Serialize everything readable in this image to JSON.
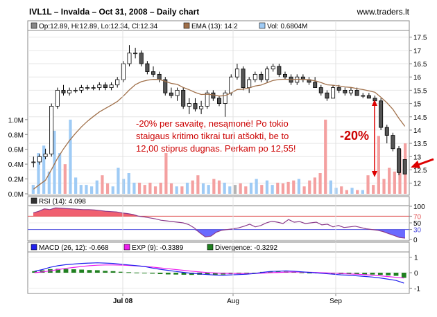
{
  "header": {
    "title": "IVL1L – Invalda – Oct 31, 2008 – Daily chart",
    "source": "www.traders.lt"
  },
  "legend_price": {
    "ohlc": "Op:12.89, Hi:12.89, Lo:12.34, Cl:12.34",
    "ema": "EMA (13): 14.2",
    "vol": "Vol: 0.6804M"
  },
  "annotation": {
    "lines": [
      "-20% per savaitę, nesąmonė! Po tokio",
      "staigaus kritimo tikrai turi atšokti, be to",
      "12,00 stiprus dugnas. Perkam po 12,55!"
    ],
    "drop_label": "-20%"
  },
  "legend_rsi": {
    "label": "RSI (14): 4.098"
  },
  "legend_macd": {
    "macd": "MACD (26, 12): -0.668",
    "exp": "EXP (9): -0.3389",
    "div": "Divergence: -0.3292"
  },
  "colors": {
    "up_volume": "#9fcbf5",
    "down_volume": "#f4a0a0",
    "neutral_volume": "#b4b4b4",
    "ema": "#a0704a",
    "rsi": "#8b3a8b",
    "rsi_fill_high": "#f06070",
    "rsi_fill_low": "#6a6aff",
    "macd": "#2020ee",
    "exp": "#ee20ee",
    "divergence": "#208020",
    "annotation": "#cc0000",
    "arrow": "#dd0000"
  },
  "chart_data": [
    {
      "type": "candlestick",
      "panel": "price",
      "x_ticks": [
        "Jul 08",
        "Aug",
        "Sep"
      ],
      "y_ticks": [
        "17.5",
        "17",
        "16.5",
        "16",
        "15.5",
        "15",
        "14.5",
        "14",
        "13.5",
        "13",
        "12.5",
        "12"
      ],
      "ylim": [
        11.6,
        17.7
      ],
      "candles": [
        [
          12.8,
          13.0,
          12.6,
          12.8
        ],
        [
          12.8,
          13.1,
          12.7,
          13.0
        ],
        [
          13.0,
          13.3,
          12.9,
          13.1
        ],
        [
          13.1,
          15.0,
          13.0,
          14.9
        ],
        [
          14.9,
          15.6,
          14.8,
          15.5
        ],
        [
          15.5,
          15.7,
          15.3,
          15.4
        ],
        [
          15.4,
          15.6,
          15.3,
          15.5
        ],
        [
          15.5,
          15.6,
          15.4,
          15.5
        ],
        [
          15.5,
          15.7,
          15.4,
          15.6
        ],
        [
          15.6,
          15.7,
          15.5,
          15.6
        ],
        [
          15.6,
          15.7,
          15.5,
          15.6
        ],
        [
          15.6,
          15.8,
          15.5,
          15.7
        ],
        [
          15.7,
          15.8,
          15.5,
          15.6
        ],
        [
          15.6,
          15.8,
          15.5,
          15.7
        ],
        [
          15.7,
          16.0,
          15.6,
          15.9
        ],
        [
          15.9,
          16.6,
          15.8,
          16.5
        ],
        [
          16.5,
          17.2,
          16.4,
          16.9
        ],
        [
          16.9,
          17.1,
          16.7,
          16.9
        ],
        [
          16.9,
          17.0,
          16.4,
          16.5
        ],
        [
          16.5,
          16.6,
          16.1,
          16.2
        ],
        [
          16.2,
          16.4,
          16.0,
          16.1
        ],
        [
          16.1,
          16.2,
          15.8,
          15.9
        ],
        [
          15.9,
          16.0,
          15.3,
          15.4
        ],
        [
          15.4,
          15.6,
          15.2,
          15.3
        ],
        [
          15.3,
          15.6,
          15.1,
          15.5
        ],
        [
          15.5,
          15.6,
          14.8,
          14.9
        ],
        [
          14.9,
          15.2,
          14.6,
          15.0
        ],
        [
          15.0,
          15.2,
          14.7,
          14.8
        ],
        [
          14.8,
          15.1,
          14.6,
          14.9
        ],
        [
          14.9,
          15.5,
          14.8,
          15.4
        ],
        [
          15.4,
          15.5,
          15.1,
          15.2
        ],
        [
          15.2,
          15.3,
          14.9,
          15.0
        ],
        [
          15.0,
          15.5,
          14.5,
          15.4
        ],
        [
          15.4,
          16.1,
          15.3,
          16.0
        ],
        [
          16.0,
          16.5,
          15.9,
          16.3
        ],
        [
          16.3,
          16.4,
          15.5,
          15.6
        ],
        [
          15.6,
          16.0,
          15.4,
          15.9
        ],
        [
          15.9,
          16.2,
          15.8,
          16.1
        ],
        [
          16.1,
          16.2,
          15.8,
          15.9
        ],
        [
          15.9,
          16.4,
          15.8,
          16.3
        ],
        [
          16.3,
          16.5,
          16.2,
          16.4
        ],
        [
          16.4,
          16.5,
          16.0,
          16.1
        ],
        [
          16.1,
          16.2,
          15.9,
          16.0
        ],
        [
          16.0,
          16.1,
          15.7,
          15.8
        ],
        [
          15.8,
          16.1,
          15.7,
          16.0
        ],
        [
          16.0,
          16.1,
          15.8,
          15.9
        ],
        [
          15.9,
          16.0,
          15.7,
          15.8
        ],
        [
          15.8,
          16.0,
          15.6,
          15.6
        ],
        [
          15.6,
          15.7,
          15.3,
          15.4
        ],
        [
          15.4,
          15.5,
          15.1,
          15.2
        ],
        [
          15.2,
          15.7,
          15.2,
          15.6
        ],
        [
          15.6,
          15.7,
          15.4,
          15.5
        ],
        [
          15.5,
          15.6,
          15.3,
          15.4
        ],
        [
          15.4,
          15.6,
          15.3,
          15.5
        ],
        [
          15.5,
          15.6,
          15.3,
          15.3
        ],
        [
          15.3,
          15.4,
          15.2,
          15.3
        ],
        [
          15.3,
          15.4,
          15.2,
          15.2
        ],
        [
          15.2,
          15.3,
          15.0,
          15.1
        ],
        [
          15.1,
          15.2,
          14.0,
          14.1
        ],
        [
          14.1,
          14.2,
          13.5,
          13.8
        ],
        [
          13.8,
          13.9,
          13.2,
          13.3
        ],
        [
          13.3,
          13.4,
          12.3,
          12.4
        ],
        [
          12.89,
          12.89,
          12.34,
          12.34
        ]
      ]
    },
    {
      "type": "bar",
      "panel": "volume",
      "y_ticks": [
        "1.0M",
        "0.8M",
        "0.6M",
        "0.4M",
        "0.2M",
        "0.0M"
      ],
      "ylim": [
        0,
        1.12
      ],
      "values": [
        0.12,
        0.55,
        0.65,
        0.3,
        0.85,
        0.55,
        0.4,
        1.0,
        0.22,
        0.12,
        0.12,
        0.1,
        0.18,
        0.25,
        0.14,
        0.1,
        0.35,
        0.2,
        0.28,
        0.15,
        0.15,
        0.12,
        0.15,
        0.1,
        0.15,
        0.55,
        0.14,
        0.1,
        0.1,
        0.15,
        0.18,
        0.25,
        0.14,
        0.12,
        0.2,
        0.18,
        0.15,
        0.1,
        0.12,
        0.14,
        0.1,
        0.15,
        0.2,
        0.12,
        0.18,
        0.12,
        0.15,
        0.14,
        0.16,
        0.18,
        0.2,
        0.1,
        0.18,
        0.22,
        0.28,
        1.0,
        0.18,
        0.08,
        0.1,
        0.05,
        0.08,
        0.05,
        0.05,
        0.25,
        0.12,
        0.78,
        0.2,
        0.35,
        0.3,
        0.6,
        0.68
      ]
    },
    {
      "type": "line",
      "panel": "rsi",
      "y_ticks": [
        "100",
        "70",
        "50",
        "30",
        "0"
      ],
      "ylim": [
        0,
        100
      ],
      "values": [
        80,
        85,
        92,
        90,
        95,
        94,
        93,
        92,
        91,
        90,
        90,
        89,
        87,
        85,
        84,
        83,
        80,
        78,
        75,
        70,
        68,
        65,
        62,
        58,
        56,
        54,
        52,
        50,
        45,
        35,
        20,
        8,
        10,
        22,
        28,
        30,
        32,
        35,
        40,
        46,
        38,
        42,
        50,
        55,
        52,
        48,
        60,
        52,
        54,
        48,
        50,
        52,
        44,
        46,
        38,
        42,
        36,
        38,
        40,
        36,
        32,
        30,
        28,
        24,
        18,
        12,
        6,
        4.098
      ]
    },
    {
      "type": "line",
      "panel": "macd",
      "y_ticks": [
        "1",
        "0",
        "-1"
      ],
      "ylim": [
        -1.25,
        1.25
      ],
      "macd": [
        0.1,
        0.2,
        0.35,
        0.45,
        0.52,
        0.56,
        0.6,
        0.62,
        0.64,
        0.62,
        0.6,
        0.55,
        0.5,
        0.45,
        0.4,
        0.3,
        0.22,
        0.15,
        0.08,
        0.02,
        -0.04,
        -0.08,
        -0.12,
        -0.15,
        -0.16,
        -0.14,
        -0.12,
        -0.1,
        -0.05,
        0.02,
        0.08,
        0.1,
        0.12,
        0.1,
        0.06,
        0.02,
        -0.02,
        -0.06,
        -0.1,
        -0.14,
        -0.16,
        -0.2,
        -0.24,
        -0.28,
        -0.34,
        -0.42,
        -0.5,
        -0.668
      ],
      "exp": [
        0.0,
        0.05,
        0.12,
        0.2,
        0.28,
        0.34,
        0.4,
        0.45,
        0.48,
        0.5,
        0.5,
        0.49,
        0.47,
        0.44,
        0.4,
        0.36,
        0.31,
        0.26,
        0.2,
        0.15,
        0.1,
        0.05,
        0.01,
        -0.02,
        -0.04,
        -0.05,
        -0.06,
        -0.06,
        -0.05,
        -0.03,
        0.0,
        0.02,
        0.04,
        0.05,
        0.04,
        0.03,
        0.01,
        -0.01,
        -0.03,
        -0.05,
        -0.08,
        -0.1,
        -0.13,
        -0.16,
        -0.2,
        -0.25,
        -0.3,
        -0.3389
      ],
      "divergence": [
        0.1,
        0.15,
        0.23,
        0.25,
        0.24,
        0.22,
        0.2,
        0.17,
        0.16,
        0.12,
        0.1,
        0.06,
        0.03,
        0.01,
        0.0,
        -0.06,
        -0.09,
        -0.11,
        -0.12,
        -0.13,
        -0.14,
        -0.13,
        -0.13,
        -0.13,
        -0.12,
        -0.09,
        -0.06,
        -0.04,
        0.0,
        0.05,
        0.08,
        0.08,
        0.08,
        0.05,
        0.02,
        -0.01,
        -0.03,
        -0.05,
        -0.07,
        -0.09,
        -0.08,
        -0.1,
        -0.11,
        -0.12,
        -0.14,
        -0.17,
        -0.2,
        -0.3292
      ]
    }
  ]
}
